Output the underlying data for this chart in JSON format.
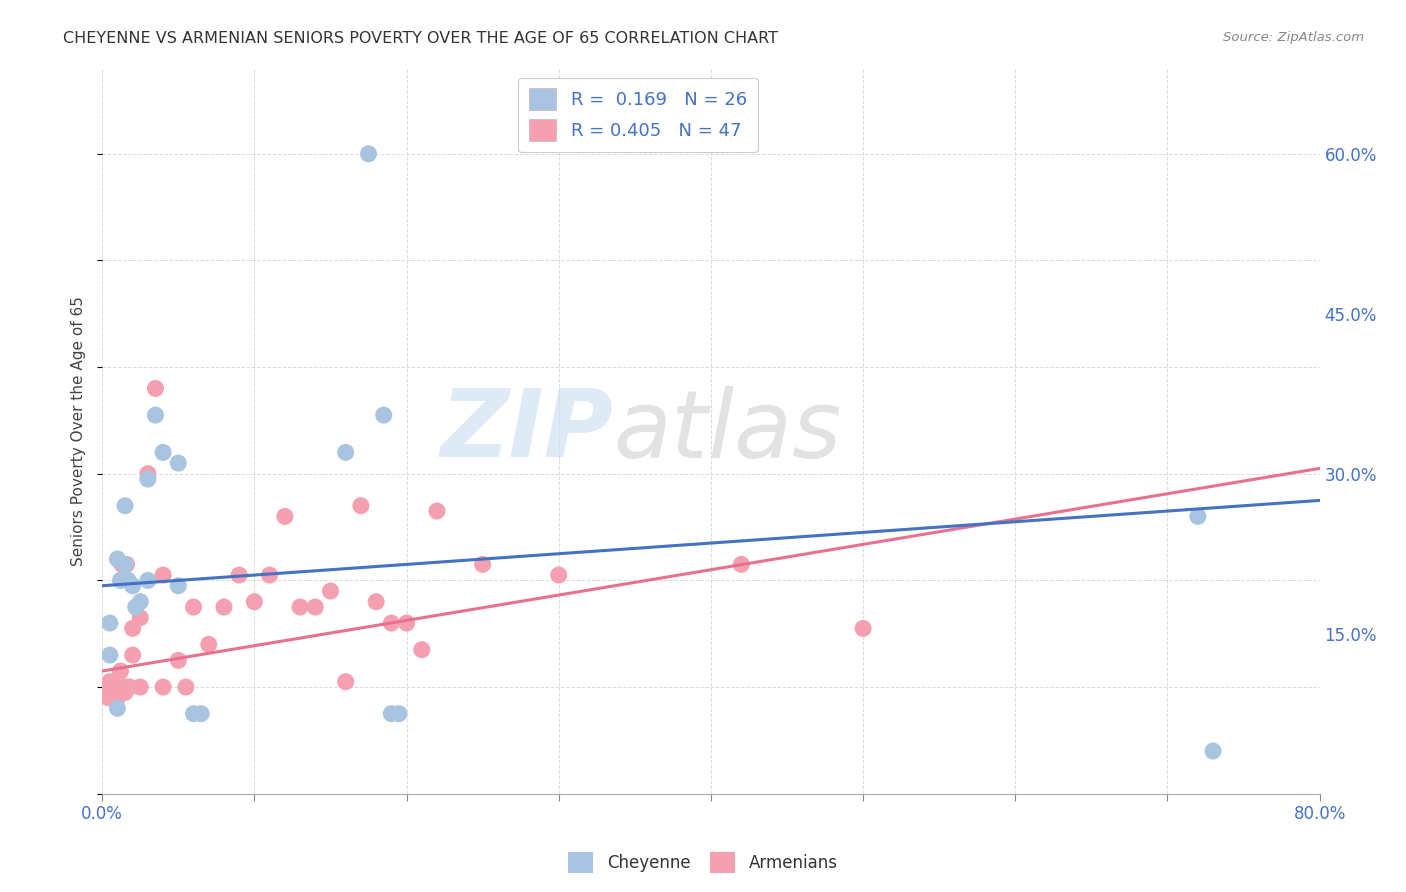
{
  "title": "CHEYENNE VS ARMENIAN SENIORS POVERTY OVER THE AGE OF 65 CORRELATION CHART",
  "source": "Source: ZipAtlas.com",
  "ylabel": "Seniors Poverty Over the Age of 65",
  "xlim": [
    0.0,
    0.8
  ],
  "ylim": [
    0.0,
    0.68
  ],
  "xticks": [
    0.0,
    0.1,
    0.2,
    0.3,
    0.4,
    0.5,
    0.6,
    0.7,
    0.8
  ],
  "xticklabels": [
    "0.0%",
    "",
    "",
    "",
    "",
    "",
    "",
    "",
    "80.0%"
  ],
  "yticks_right": [
    0.0,
    0.15,
    0.3,
    0.45,
    0.6
  ],
  "ytick_right_labels": [
    "",
    "15.0%",
    "30.0%",
    "45.0%",
    "60.0%"
  ],
  "cheyenne_color": "#a8c4e0",
  "armenian_color": "#f4a0b0",
  "cheyenne_line_color": "#4472c4",
  "armenian_line_color": "#e87090",
  "cheyenne_R": 0.169,
  "cheyenne_N": 26,
  "armenian_R": 0.405,
  "armenian_N": 47,
  "legend_R_color": "#4472c4",
  "background_color": "#ffffff",
  "grid_color": "#cccccc",
  "cheyenne_x": [
    0.005,
    0.005,
    0.01,
    0.01,
    0.012,
    0.015,
    0.015,
    0.017,
    0.02,
    0.022,
    0.025,
    0.03,
    0.03,
    0.035,
    0.04,
    0.05,
    0.05,
    0.06,
    0.065,
    0.16,
    0.175,
    0.185,
    0.19,
    0.195,
    0.72,
    0.73
  ],
  "cheyenne_y": [
    0.13,
    0.16,
    0.08,
    0.22,
    0.2,
    0.215,
    0.27,
    0.2,
    0.195,
    0.175,
    0.18,
    0.295,
    0.2,
    0.355,
    0.32,
    0.195,
    0.31,
    0.075,
    0.075,
    0.32,
    0.6,
    0.355,
    0.075,
    0.075,
    0.26,
    0.04
  ],
  "armenian_x": [
    0.002,
    0.003,
    0.004,
    0.005,
    0.006,
    0.007,
    0.008,
    0.009,
    0.01,
    0.01,
    0.012,
    0.013,
    0.015,
    0.015,
    0.016,
    0.018,
    0.02,
    0.02,
    0.025,
    0.025,
    0.03,
    0.035,
    0.04,
    0.04,
    0.05,
    0.055,
    0.06,
    0.07,
    0.08,
    0.09,
    0.1,
    0.11,
    0.12,
    0.13,
    0.14,
    0.15,
    0.16,
    0.17,
    0.18,
    0.19,
    0.2,
    0.21,
    0.22,
    0.25,
    0.3,
    0.42,
    0.5
  ],
  "armenian_y": [
    0.1,
    0.095,
    0.09,
    0.105,
    0.1,
    0.095,
    0.1,
    0.095,
    0.09,
    0.1,
    0.115,
    0.215,
    0.095,
    0.1,
    0.215,
    0.1,
    0.13,
    0.155,
    0.165,
    0.1,
    0.3,
    0.38,
    0.205,
    0.1,
    0.125,
    0.1,
    0.175,
    0.14,
    0.175,
    0.205,
    0.18,
    0.205,
    0.26,
    0.175,
    0.175,
    0.19,
    0.105,
    0.27,
    0.18,
    0.16,
    0.16,
    0.135,
    0.265,
    0.215,
    0.205,
    0.215,
    0.155
  ],
  "chey_line_x0": 0.0,
  "chey_line_x1": 0.8,
  "chey_line_y0": 0.195,
  "chey_line_y1": 0.275,
  "arm_line_x0": 0.0,
  "arm_line_x1": 0.8,
  "arm_line_y0": 0.115,
  "arm_line_y1": 0.305
}
